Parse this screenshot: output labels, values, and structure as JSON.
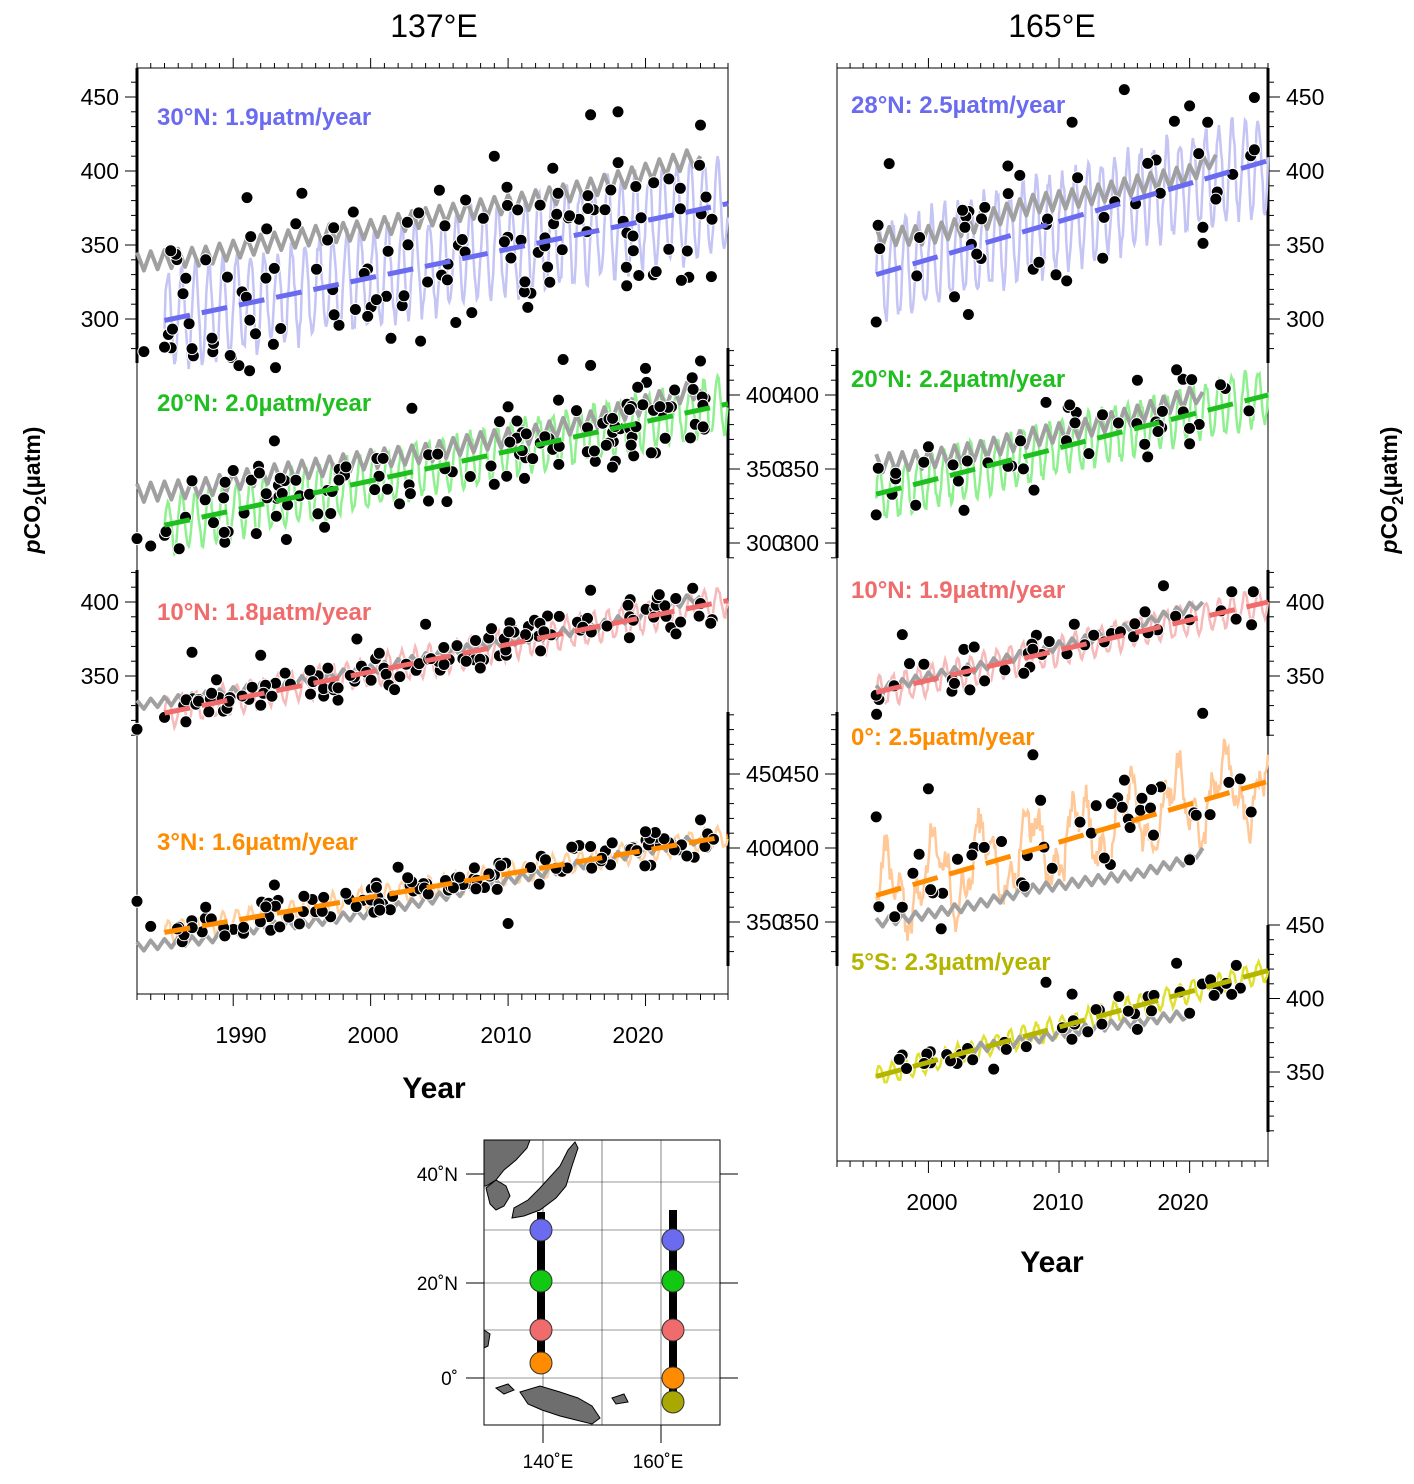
{
  "columns": [
    {
      "title": "137°E",
      "xlabel": "Year",
      "xticks": [
        "1990",
        "2000",
        "2010",
        "2020"
      ]
    },
    {
      "title": "165°E",
      "xlabel": "Year",
      "xticks": [
        "2000",
        "2010",
        "2020"
      ]
    }
  ],
  "ylabel": {
    "italic": "p",
    "main": "CO",
    "sub": "2",
    "unit": "(µatm)"
  },
  "colors": {
    "30N": "#6b6bf0",
    "28N": "#6b6bf0",
    "20N": "#11c911",
    "10N": "#f06b6b",
    "3N": "#ff8c00",
    "0": "#ff8c00",
    "5S": "#b5b500",
    "ocean": "#a0a0a0",
    "observed": "#000000"
  },
  "chart_data": [
    {
      "type": "line",
      "title": "30°N: 1.9µatm/year",
      "column": "137°E",
      "station": "30N",
      "rate": 1.9,
      "ylim": [
        275,
        470
      ],
      "yticks": [
        "300",
        "350",
        "400",
        "450"
      ],
      "xlim": [
        1983,
        2026
      ],
      "trend": {
        "x": [
          1985,
          2026
        ],
        "y": [
          299,
          378
        ]
      },
      "ocean_gray": {
        "x": [
          1983,
          1988,
          1992,
          1996,
          2000,
          2004,
          2008,
          2012,
          2016,
          2020,
          2024
        ],
        "y": [
          338,
          342,
          350,
          356,
          360,
          368,
          374,
          380,
          388,
          398,
          410
        ]
      },
      "observed_samples": [
        [
          1983.5,
          278
        ],
        [
          1985,
          281
        ],
        [
          1987,
          280
        ],
        [
          1988,
          340
        ],
        [
          1991,
          382
        ],
        [
          1995,
          385
        ],
        [
          2005,
          387
        ],
        [
          2009,
          410
        ],
        [
          2016,
          438
        ],
        [
          2018,
          440
        ],
        [
          2024,
          431
        ]
      ]
    },
    {
      "type": "line",
      "title": "20°N: 2.0µatm/year",
      "column": "137°E",
      "station": "20N",
      "rate": 2.0,
      "ylim": [
        290,
        425
      ],
      "yticks": [
        "300",
        "350",
        "400"
      ],
      "xlim": [
        1983,
        2026
      ],
      "trend": {
        "x": [
          1985,
          2026
        ],
        "y": [
          312,
          394
        ]
      },
      "ocean_gray": {
        "x": [
          1983,
          1988,
          1992,
          1996,
          2000,
          2004,
          2008,
          2012,
          2016,
          2020,
          2024
        ],
        "y": [
          333,
          337,
          345,
          350,
          356,
          360,
          368,
          373,
          382,
          393,
          404
        ]
      },
      "observed_samples": [
        [
          1983,
          303
        ],
        [
          1984,
          298
        ],
        [
          1987,
          342
        ],
        [
          1990,
          349
        ],
        [
          1993,
          369
        ],
        [
          2003,
          391
        ],
        [
          2010,
          392
        ],
        [
          2014,
          424
        ],
        [
          2016,
          420
        ],
        [
          2020,
          418
        ],
        [
          2024,
          423
        ]
      ]
    },
    {
      "type": "line",
      "title": "10°N: 1.8µatm/year",
      "column": "137°E",
      "station": "10N",
      "rate": 1.8,
      "ylim": [
        320,
        420
      ],
      "yticks": [
        "350",
        "400"
      ],
      "xlim": [
        1983,
        2026
      ],
      "trend": {
        "x": [
          1985,
          2026
        ],
        "y": [
          325,
          401
        ]
      },
      "ocean_gray": {
        "x": [
          1983,
          1988,
          1992,
          1996,
          2000,
          2004,
          2008,
          2012,
          2016,
          2020,
          2024
        ],
        "y": [
          330,
          336,
          342,
          348,
          354,
          362,
          370,
          376,
          382,
          392,
          404
        ]
      },
      "observed_samples": [
        [
          1983,
          314
        ],
        [
          1985,
          322
        ],
        [
          1987,
          366
        ],
        [
          1992,
          364
        ],
        [
          1999,
          375
        ],
        [
          2004,
          385
        ],
        [
          2016,
          408
        ],
        [
          2021,
          405
        ],
        [
          2024,
          399
        ]
      ]
    },
    {
      "type": "line",
      "title": "3°N: 1.6µatm/year",
      "column": "137°E",
      "station": "3N",
      "rate": 1.6,
      "ylim": [
        320,
        490
      ],
      "yticks": [
        "350",
        "400",
        "450"
      ],
      "xlim": [
        1983,
        2026
      ],
      "trend": {
        "x": [
          1985,
          2026
        ],
        "y": [
          343,
          408
        ]
      },
      "ocean_gray": {
        "x": [
          1983,
          1988,
          1992,
          1996,
          2000,
          2004,
          2008,
          2012,
          2016,
          2020,
          2024
        ],
        "y": [
          333,
          338,
          346,
          350,
          356,
          364,
          374,
          382,
          390,
          398,
          406
        ]
      },
      "observed_samples": [
        [
          1983,
          364
        ],
        [
          1984,
          347
        ],
        [
          1988,
          360
        ],
        [
          1993,
          375
        ],
        [
          2002,
          387
        ],
        [
          2010,
          349
        ],
        [
          2016,
          401
        ],
        [
          2020,
          411
        ],
        [
          2024,
          419
        ]
      ]
    },
    {
      "type": "line",
      "title": "28°N: 2.5µatm/year",
      "column": "165°E",
      "station": "28N",
      "rate": 2.5,
      "ylim": [
        275,
        470
      ],
      "yticks": [
        "300",
        "350",
        "400",
        "450"
      ],
      "xlim": [
        1993,
        2026
      ],
      "trend": {
        "x": [
          1996,
          2026
        ],
        "y": [
          330,
          407
        ]
      },
      "ocean_gray": {
        "x": [
          1996,
          2000,
          2004,
          2008,
          2012,
          2016,
          2020,
          2022
        ],
        "y": [
          355,
          356,
          365,
          377,
          382,
          390,
          397,
          411
        ]
      },
      "observed_samples": [
        [
          1996,
          298
        ],
        [
          1997,
          405
        ],
        [
          2002,
          315
        ],
        [
          2007,
          397
        ],
        [
          2011,
          433
        ],
        [
          2015,
          455
        ],
        [
          2020,
          444
        ],
        [
          2022,
          381
        ]
      ]
    },
    {
      "type": "line",
      "title": "20°N: 2.2µatm/year",
      "column": "165°E",
      "station": "20N",
      "rate": 2.2,
      "ylim": [
        290,
        425
      ],
      "yticks": [
        "300",
        "350",
        "400"
      ],
      "xlim": [
        1993,
        2026
      ],
      "trend": {
        "x": [
          1996,
          2026
        ],
        "y": [
          333,
          400
        ]
      },
      "ocean_gray": {
        "x": [
          1996,
          2000,
          2004,
          2008,
          2012,
          2016,
          2020,
          2021
        ],
        "y": [
          353,
          356,
          362,
          371,
          377,
          386,
          398,
          402
        ]
      },
      "observed_samples": [
        [
          1996,
          319
        ],
        [
          2000,
          365
        ],
        [
          2009,
          395
        ],
        [
          2016,
          410
        ],
        [
          2019,
          417
        ],
        [
          2020,
          367
        ]
      ]
    },
    {
      "type": "line",
      "title": "10°N: 1.9µatm/year",
      "column": "165°E",
      "station": "10N",
      "rate": 1.9,
      "ylim": [
        320,
        420
      ],
      "yticks": [
        "350",
        "400"
      ],
      "xlim": [
        1993,
        2026
      ],
      "trend": {
        "x": [
          1996,
          2026
        ],
        "y": [
          339,
          400
        ]
      },
      "ocean_gray": {
        "x": [
          1996,
          2000,
          2004,
          2008,
          2012,
          2016,
          2020,
          2021
        ],
        "y": [
          340,
          349,
          356,
          366,
          374,
          384,
          396,
          400
        ]
      },
      "observed_samples": [
        [
          1996,
          337
        ],
        [
          1998,
          378
        ],
        [
          2002,
          345
        ],
        [
          2018,
          411
        ],
        [
          2020,
          388
        ]
      ]
    },
    {
      "type": "line",
      "title": "0°: 2.5µatm/year",
      "column": "165°E",
      "station": "0",
      "rate": 2.5,
      "ylim": [
        320,
        490
      ],
      "yticks": [
        "350",
        "400",
        "450"
      ],
      "xlim": [
        1993,
        2026
      ],
      "trend": {
        "x": [
          1996,
          2026
        ],
        "y": [
          368,
          445
        ]
      },
      "ocean_gray": {
        "x": [
          1996,
          2000,
          2004,
          2008,
          2012,
          2016,
          2020,
          2021
        ],
        "y": [
          349,
          355,
          362,
          372,
          377,
          382,
          392,
          400
        ]
      },
      "observed_samples": [
        [
          1996,
          421
        ],
        [
          1998,
          360
        ],
        [
          2000,
          440
        ],
        [
          2008,
          463
        ],
        [
          2014,
          430
        ],
        [
          2017,
          427
        ],
        [
          2020,
          392
        ],
        [
          2021,
          491
        ]
      ]
    },
    {
      "type": "line",
      "title": "5°S: 2.3µatm/year",
      "column": "165°E",
      "station": "5S",
      "rate": 2.3,
      "ylim": [
        305,
        455
      ],
      "yticks": [
        "350",
        "400",
        "450"
      ],
      "xlim": [
        1993,
        2026
      ],
      "trend": {
        "x": [
          1996,
          2026
        ],
        "y": [
          347,
          419
        ]
      },
      "ocean_gray": {
        "x": [
          2003,
          2008,
          2012,
          2016,
          2020
        ],
        "y": [
          365,
          372,
          379,
          384,
          389
        ]
      },
      "observed_samples": [
        [
          2003,
          366
        ],
        [
          2005,
          352
        ],
        [
          2009,
          411
        ],
        [
          2011,
          403
        ],
        [
          2016,
          379
        ],
        [
          2019,
          424
        ],
        [
          2020,
          390
        ]
      ]
    }
  ],
  "map": {
    "lat_ticks": [
      "40˚N",
      "20˚N",
      "0˚"
    ],
    "lon_ticks": [
      "140˚E",
      "160˚E"
    ],
    "stations_137E": [
      "30N",
      "20N",
      "10N",
      "3N"
    ],
    "stations_165E": [
      "28N",
      "20N",
      "10N",
      "0",
      "5S"
    ]
  }
}
